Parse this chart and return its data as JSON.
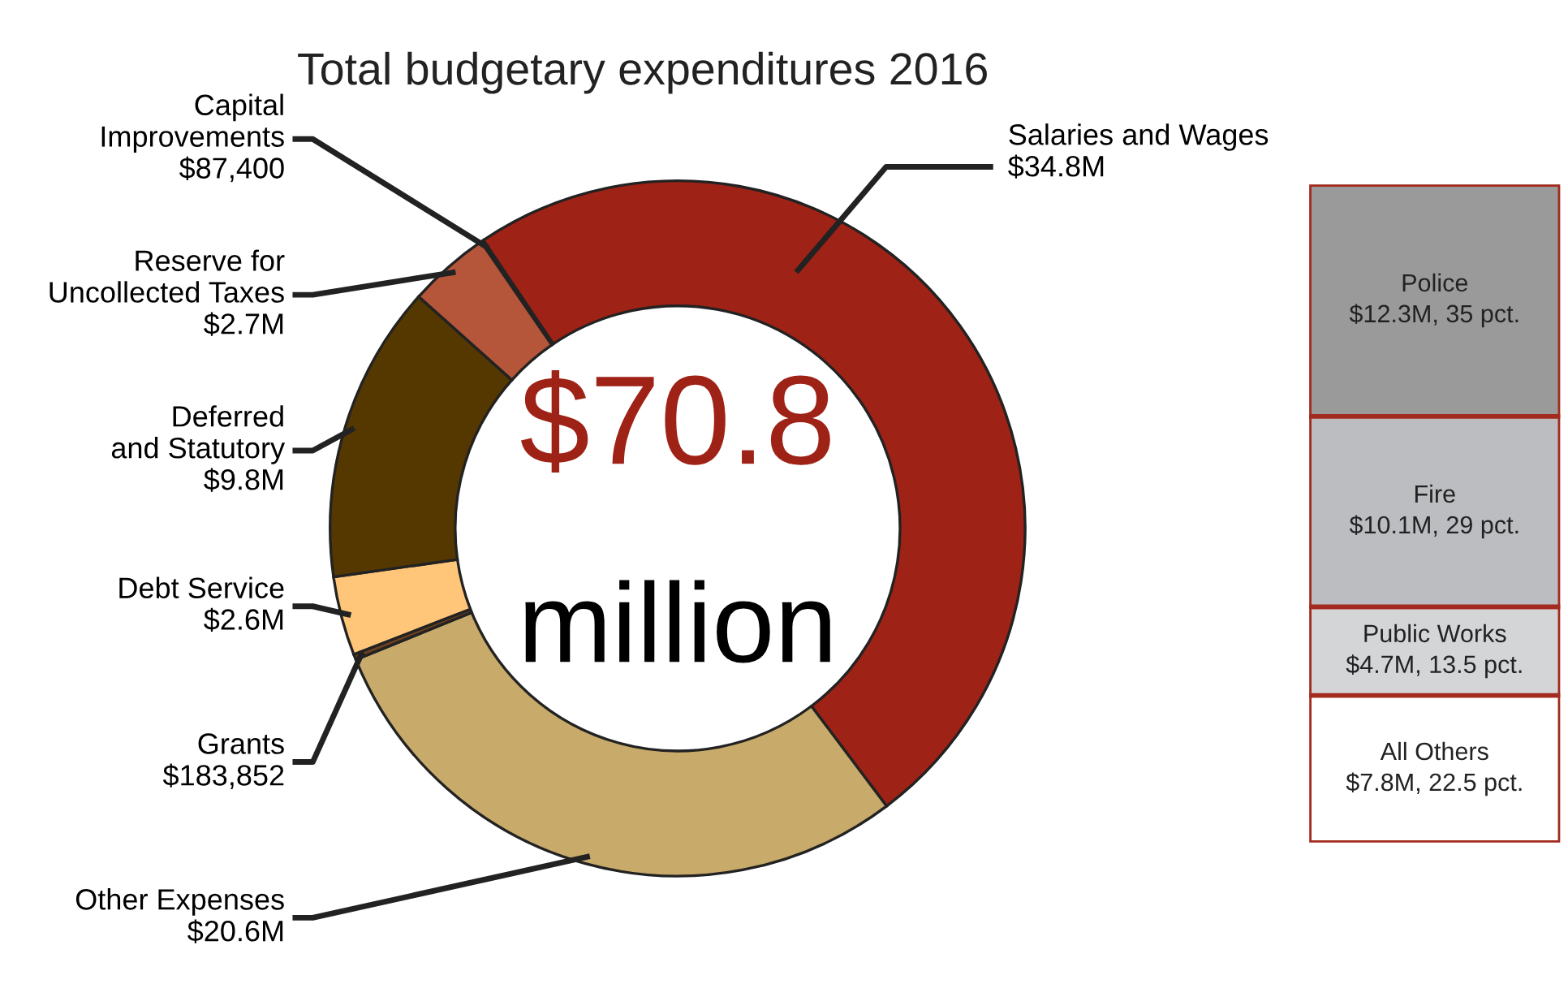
{
  "chart_data": [
    {
      "type": "donut",
      "title": "Total budgetary expenditures 2016",
      "categories": [
        "Salaries and Wages",
        "Other Expenses",
        "Grants",
        "Debt Service",
        "Deferred\nand Statutory",
        "Reserve for\nUncollected Taxes",
        "Capital\nImprovements"
      ],
      "values": [
        34800000,
        20600000,
        183852,
        2600000,
        9800000,
        2700000,
        87400
      ],
      "value_labels": [
        "$34.8M",
        "$20.6M",
        "$183,852",
        "$2.6M",
        "$9.8M",
        "$2.7M",
        "$87,400"
      ],
      "colors": [
        "#9e2216",
        "#c8aa6a",
        "#6a4020",
        "#ffc67a",
        "#553800",
        "#b5553a",
        "#8a2a1a"
      ],
      "annotations": [
        "$70.8",
        "million"
      ]
    },
    {
      "type": "bar",
      "stacked": true,
      "categories": [
        null
      ],
      "tick_labels": false,
      "series": [
        {
          "name": "All Others",
          "color": "#ffffff",
          "values": [
            7800000
          ],
          "value_labels": [
            "$7.8M, 22.5 pct."
          ]
        },
        {
          "name": "Public Works",
          "color": "#d4d5d7",
          "values": [
            4700000
          ],
          "value_labels": [
            "$4.7M, 13.5 pct."
          ]
        },
        {
          "name": "Fire",
          "color": "#bcbdc0",
          "values": [
            10100000
          ],
          "value_labels": [
            "$10.1M, 29 pct."
          ]
        },
        {
          "name": "Police",
          "color": "#9a9a9a",
          "values": [
            12300000
          ],
          "value_labels": [
            "$12.3M, 35 pct."
          ]
        }
      ]
    }
  ]
}
